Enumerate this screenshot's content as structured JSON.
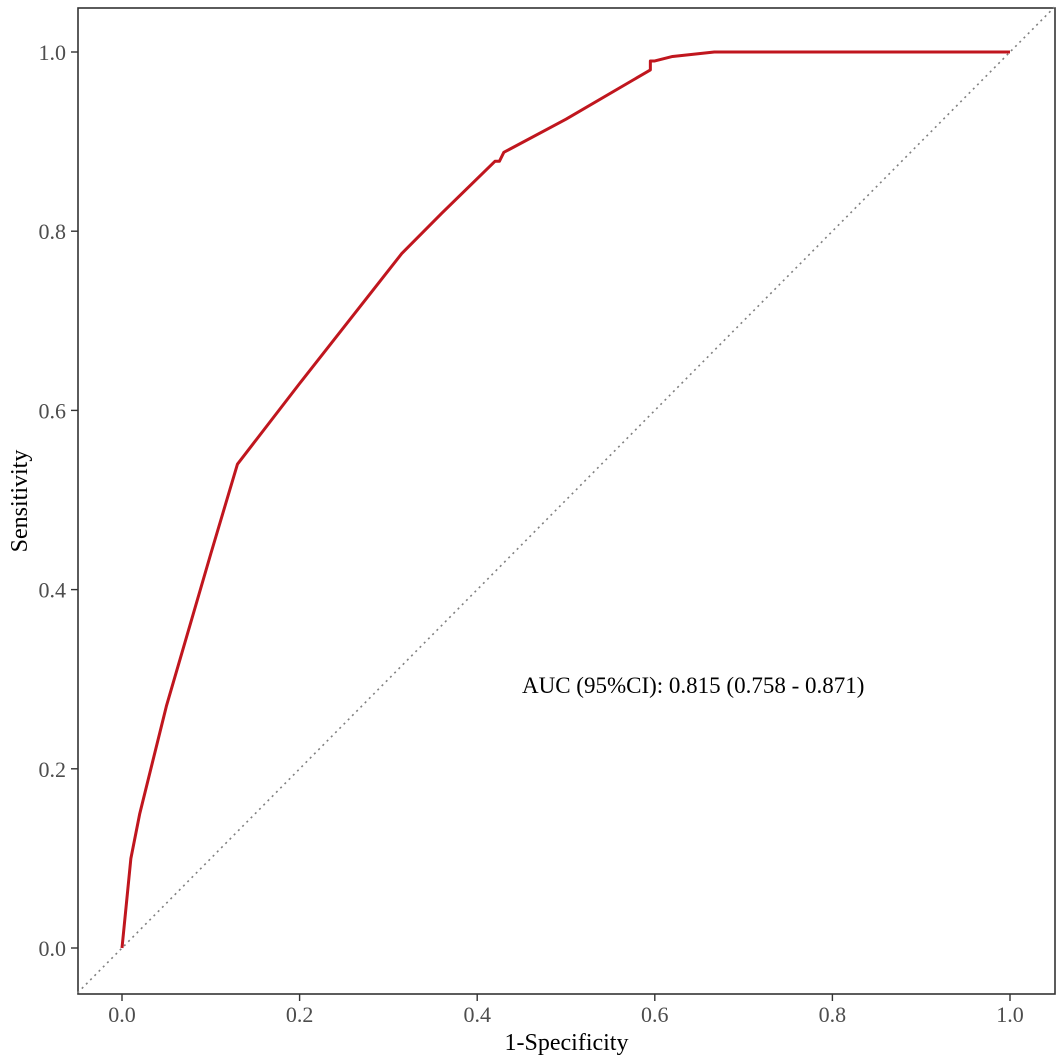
{
  "chart_data": {
    "type": "line",
    "title": "",
    "xlabel": "1-Specificity",
    "ylabel": "Sensitivity",
    "xlim": [
      -0.05,
      1.05
    ],
    "ylim": [
      -0.05,
      1.05
    ],
    "grid": false,
    "x_ticks": [
      0.0,
      0.2,
      0.4,
      0.6,
      0.8,
      1.0
    ],
    "y_ticks": [
      0.0,
      0.2,
      0.4,
      0.6,
      0.8,
      1.0
    ],
    "x_tick_labels": [
      "0.0",
      "0.2",
      "0.4",
      "0.6",
      "0.8",
      "1.0"
    ],
    "y_tick_labels": [
      "0.0",
      "0.2",
      "0.4",
      "0.6",
      "0.8",
      "1.0"
    ],
    "series": [
      {
        "color": "#c0161e",
        "x": [
          0.0,
          0.005,
          0.01,
          0.02,
          0.05,
          0.1,
          0.13,
          0.2,
          0.315,
          0.36,
          0.42,
          0.425,
          0.43,
          0.5,
          0.595,
          0.595,
          0.6,
          0.62,
          0.667,
          0.8,
          1.0
        ],
        "y": [
          0.0,
          0.05,
          0.1,
          0.15,
          0.27,
          0.44,
          0.54,
          0.63,
          0.775,
          0.82,
          0.878,
          0.878,
          0.888,
          0.925,
          0.98,
          0.99,
          0.99,
          0.995,
          1.0,
          1.0,
          1.0
        ]
      }
    ],
    "reference_line": {
      "x": [
        -0.05,
        1.05
      ],
      "y": [
        -0.05,
        1.05
      ],
      "color": "#808080",
      "style": "dotted"
    },
    "annotation": "AUC (95%CI): 0.815 (0.758 - 0.871)"
  }
}
